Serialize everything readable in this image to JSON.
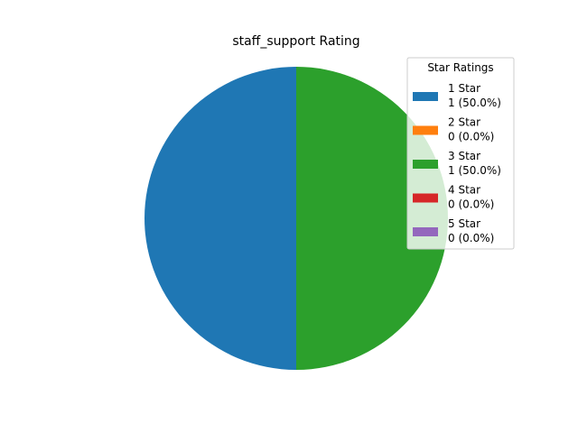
{
  "chart_data": {
    "type": "pie",
    "title": "staff_support Rating",
    "legend_title": "Star Ratings",
    "legend_position": "top-right",
    "start_angle_deg": 90,
    "direction": "counterclockwise",
    "slices": [
      {
        "label": "1 Star",
        "value": 1,
        "percent_text": "1 (50.0%)",
        "color": "#1f77b4"
      },
      {
        "label": "2 Star",
        "value": 0,
        "percent_text": "0 (0.0%)",
        "color": "#ff7f0e"
      },
      {
        "label": "3 Star",
        "value": 1,
        "percent_text": "1 (50.0%)",
        "color": "#2ca02c"
      },
      {
        "label": "4 Star",
        "value": 0,
        "percent_text": "0 (0.0%)",
        "color": "#d62728"
      },
      {
        "label": "5 Star",
        "value": 0,
        "percent_text": "0 (0.0%)",
        "color": "#9467bd"
      }
    ]
  }
}
